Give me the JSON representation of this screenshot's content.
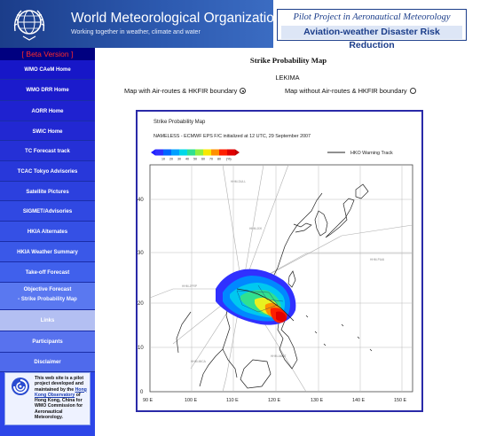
{
  "header": {
    "org_name": "World Meteorological Organization",
    "org_tagline": "Working together in weather, climate and water",
    "pilot_title": "Pilot Project in Aeronautical Meteorology",
    "pilot_subtitle": "Aviation-weather Disaster Risk Reduction"
  },
  "sidebar": {
    "beta_label": "[ Beta Version ]",
    "items": [
      {
        "label": "WMO CAeM Home"
      },
      {
        "label": "WMO DRR Home"
      },
      {
        "label": "AORR Home"
      },
      {
        "label": "SWIC Home"
      },
      {
        "label": "TC Forecast track"
      },
      {
        "label": "TCAC Tokyo Advisories"
      },
      {
        "label": "Satellite Pictures"
      },
      {
        "label": "SIGMET/Advisories"
      },
      {
        "label": "HKIA Alternates"
      },
      {
        "label": "HKIA Weather Summary"
      },
      {
        "label": "Take-off Forecast"
      },
      {
        "label": "Objective Forecast"
      },
      {
        "label": "- Strike Probability Map"
      },
      {
        "label": "Links"
      },
      {
        "label": "Participants"
      },
      {
        "label": "Disclaimer"
      }
    ],
    "info": {
      "text_1": "This web site is a pilot project developed and maintained by the",
      "link": "Hong Kong Observatory",
      "text_2": "of Hong Kong, China for WMO Commission for Aeronautical Meteorology."
    }
  },
  "main": {
    "page_title": "Strike Probability Map",
    "storm_name": "LEKIMA",
    "option_with": "Map with Air-routes & HKFIR boundary",
    "option_without": "Map without Air-routes & HKFIR boundary",
    "selected_option": "with"
  },
  "map": {
    "title": "Strike Probability Map",
    "subtitle": "NAMELESS  -  ECMWF EPS F/C initialized at 12 UTC, 29 September 2007",
    "legend_track_label": "HKO Warning Track",
    "colorbar_ticks": [
      "10",
      "20",
      "30",
      "40",
      "50",
      "60",
      "70",
      "80",
      "(%)"
    ],
    "colorbar_colors": [
      "#3030ff",
      "#0066ff",
      "#00a0ff",
      "#00d8e8",
      "#30e090",
      "#90f040",
      "#f8e800",
      "#ff9000",
      "#ff2000",
      "#e00000"
    ],
    "lat_labels": [
      "0",
      "10",
      "20",
      "30",
      "40"
    ],
    "lon_labels": [
      "90 E",
      "100 E",
      "110 E",
      "120 E",
      "130 E",
      "140 E",
      "150 E"
    ],
    "route_labels": [
      "HHM-DULL",
      "HHM-JIXI",
      "HHM-PUAI",
      "HHM-JPRP",
      "HHM-MICA",
      "HHM-AMAT"
    ]
  }
}
